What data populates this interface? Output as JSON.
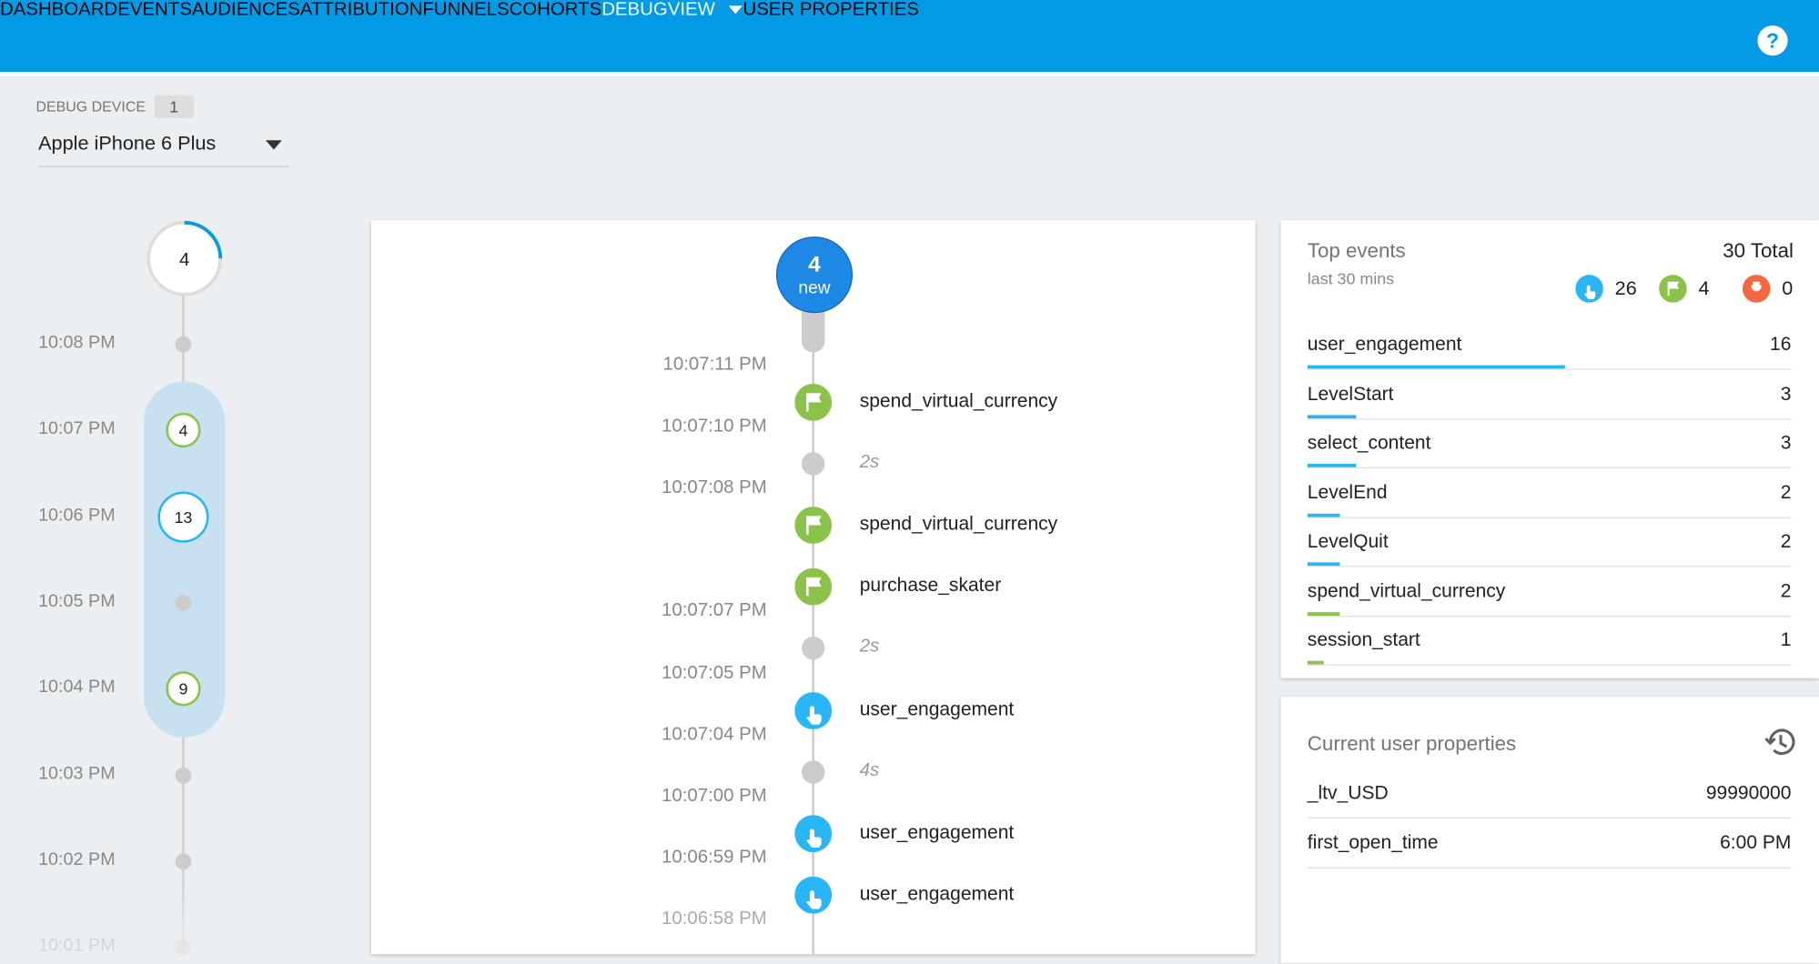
{
  "nav": {
    "tabs": [
      "DASHBOARD",
      "EVENTS",
      "AUDIENCES",
      "ATTRIBUTION",
      "FUNNELS",
      "COHORTS",
      "DEBUGVIEW",
      "USER PROPERTIES"
    ],
    "active": 6
  },
  "device": {
    "label": "DEBUG DEVICE",
    "count": "1",
    "name": "Apple iPhone 6 Plus"
  },
  "minutes": {
    "current": "4",
    "rows": [
      {
        "time": "10:08 PM"
      },
      {
        "time": "10:07 PM",
        "count": "4"
      },
      {
        "time": "10:06 PM",
        "count": "13"
      },
      {
        "time": "10:05 PM"
      },
      {
        "time": "10:04 PM",
        "count": "9"
      },
      {
        "time": "10:03 PM"
      },
      {
        "time": "10:02 PM"
      },
      {
        "time": "10:01 PM"
      }
    ]
  },
  "stream": {
    "badge_count": "4",
    "badge_label": "new",
    "items": [
      {
        "time": "10:07:11 PM",
        "kind": "flag",
        "name": "spend_virtual_currency"
      },
      {
        "time": "10:07:10 PM",
        "gap": "2s"
      },
      {
        "time": "10:07:08 PM",
        "kind": "flag",
        "name": "spend_virtual_currency"
      },
      {
        "kind": "flag",
        "name": "purchase_skater"
      },
      {
        "time": "10:07:07 PM",
        "gap": "2s"
      },
      {
        "time": "10:07:05 PM",
        "kind": "touch",
        "name": "user_engagement"
      },
      {
        "time": "10:07:04 PM",
        "gap": "4s"
      },
      {
        "time": "10:07:00 PM",
        "kind": "touch",
        "name": "user_engagement"
      },
      {
        "time": "10:06:59 PM",
        "kind": "touch",
        "name": "user_engagement"
      }
    ],
    "last_time": "10:06:58 PM"
  },
  "top_events": {
    "title": "Top events",
    "subtitle": "last 30 mins",
    "total": "30 Total",
    "by_kind": [
      {
        "kind": "touch",
        "count": 26
      },
      {
        "kind": "flag",
        "count": 4
      },
      {
        "kind": "error",
        "count": 0
      }
    ],
    "rows": [
      {
        "name": "user_engagement",
        "count": 16,
        "kind": "touch"
      },
      {
        "name": "LevelStart",
        "count": 3,
        "kind": "touch"
      },
      {
        "name": "select_content",
        "count": 3,
        "kind": "touch"
      },
      {
        "name": "LevelEnd",
        "count": 2,
        "kind": "touch"
      },
      {
        "name": "LevelQuit",
        "count": 2,
        "kind": "touch"
      },
      {
        "name": "spend_virtual_currency",
        "count": 2,
        "kind": "flag"
      },
      {
        "name": "session_start",
        "count": 1,
        "kind": "flag"
      }
    ]
  },
  "user_properties": {
    "title": "Current user properties",
    "rows": [
      {
        "name": "_ltv_USD",
        "value": "99990000"
      },
      {
        "name": "first_open_time",
        "value": "6:00 PM"
      }
    ]
  }
}
